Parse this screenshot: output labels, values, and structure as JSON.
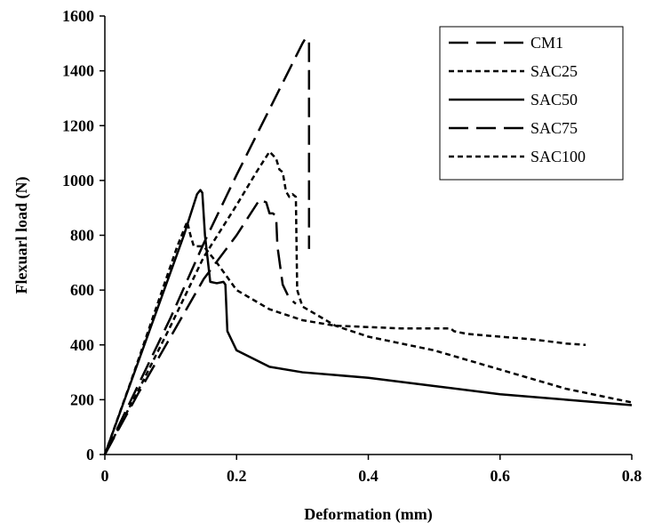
{
  "chart_data": {
    "type": "line",
    "title": "",
    "xlabel": "Deformation (mm)",
    "ylabel": "Flexuarl load (N)",
    "xlim": [
      0,
      0.8
    ],
    "ylim": [
      0,
      1600
    ],
    "x_ticks": [
      "0",
      "0.2",
      "0.4",
      "0.6",
      "0.8"
    ],
    "y_ticks": [
      "0",
      "200",
      "400",
      "600",
      "800",
      "1000",
      "1200",
      "1400",
      "1600"
    ],
    "legend_position": "top-right",
    "grid": false,
    "series": [
      {
        "name": "CM1",
        "line_style": "long-dash",
        "color": "#000000",
        "points": [
          [
            0,
            0
          ],
          [
            0.05,
            250
          ],
          [
            0.1,
            500
          ],
          [
            0.15,
            770
          ],
          [
            0.2,
            1020
          ],
          [
            0.25,
            1260
          ],
          [
            0.3,
            1500
          ],
          [
            0.305,
            1520
          ],
          [
            0.31,
            1510
          ],
          [
            0.31,
            750
          ]
        ]
      },
      {
        "name": "SAC25",
        "line_style": "short-dash",
        "color": "#000000",
        "points": [
          [
            0,
            0
          ],
          [
            0.05,
            230
          ],
          [
            0.1,
            470
          ],
          [
            0.15,
            720
          ],
          [
            0.2,
            910
          ],
          [
            0.23,
            1030
          ],
          [
            0.25,
            1105
          ],
          [
            0.26,
            1080
          ],
          [
            0.265,
            1040
          ],
          [
            0.27,
            1030
          ],
          [
            0.275,
            960
          ],
          [
            0.28,
            940
          ],
          [
            0.285,
            950
          ],
          [
            0.29,
            940
          ],
          [
            0.292,
            600
          ],
          [
            0.3,
            540
          ],
          [
            0.35,
            470
          ],
          [
            0.4,
            430
          ],
          [
            0.5,
            380
          ],
          [
            0.6,
            310
          ],
          [
            0.7,
            240
          ],
          [
            0.8,
            190
          ]
        ]
      },
      {
        "name": "SAC50",
        "line_style": "solid",
        "color": "#000000",
        "points": [
          [
            0,
            0
          ],
          [
            0.03,
            200
          ],
          [
            0.06,
            400
          ],
          [
            0.09,
            600
          ],
          [
            0.12,
            800
          ],
          [
            0.14,
            950
          ],
          [
            0.145,
            965
          ],
          [
            0.148,
            955
          ],
          [
            0.152,
            800
          ],
          [
            0.16,
            630
          ],
          [
            0.17,
            625
          ],
          [
            0.18,
            630
          ],
          [
            0.183,
            620
          ],
          [
            0.186,
            450
          ],
          [
            0.2,
            380
          ],
          [
            0.25,
            320
          ],
          [
            0.3,
            300
          ],
          [
            0.35,
            290
          ],
          [
            0.4,
            280
          ],
          [
            0.5,
            250
          ],
          [
            0.6,
            220
          ],
          [
            0.7,
            200
          ],
          [
            0.8,
            180
          ]
        ]
      },
      {
        "name": "SAC75",
        "line_style": "long-dash",
        "color": "#000000",
        "points": [
          [
            0,
            0
          ],
          [
            0.05,
            220
          ],
          [
            0.1,
            430
          ],
          [
            0.15,
            640
          ],
          [
            0.2,
            800
          ],
          [
            0.235,
            930
          ],
          [
            0.245,
            920
          ],
          [
            0.25,
            880
          ],
          [
            0.255,
            880
          ],
          [
            0.26,
            870
          ],
          [
            0.262,
            760
          ],
          [
            0.27,
            620
          ],
          [
            0.28,
            570
          ],
          [
            0.29,
            550
          ]
        ]
      },
      {
        "name": "SAC100",
        "line_style": "short-dash",
        "color": "#000000",
        "points": [
          [
            0,
            0
          ],
          [
            0.04,
            270
          ],
          [
            0.08,
            550
          ],
          [
            0.11,
            760
          ],
          [
            0.125,
            850
          ],
          [
            0.13,
            800
          ],
          [
            0.135,
            760
          ],
          [
            0.15,
            760
          ],
          [
            0.17,
            700
          ],
          [
            0.2,
            600
          ],
          [
            0.25,
            530
          ],
          [
            0.3,
            490
          ],
          [
            0.35,
            470
          ],
          [
            0.4,
            465
          ],
          [
            0.45,
            460
          ],
          [
            0.5,
            460
          ],
          [
            0.525,
            460
          ],
          [
            0.53,
            450
          ],
          [
            0.55,
            440
          ],
          [
            0.6,
            430
          ],
          [
            0.65,
            420
          ],
          [
            0.7,
            405
          ],
          [
            0.73,
            400
          ]
        ]
      }
    ]
  }
}
